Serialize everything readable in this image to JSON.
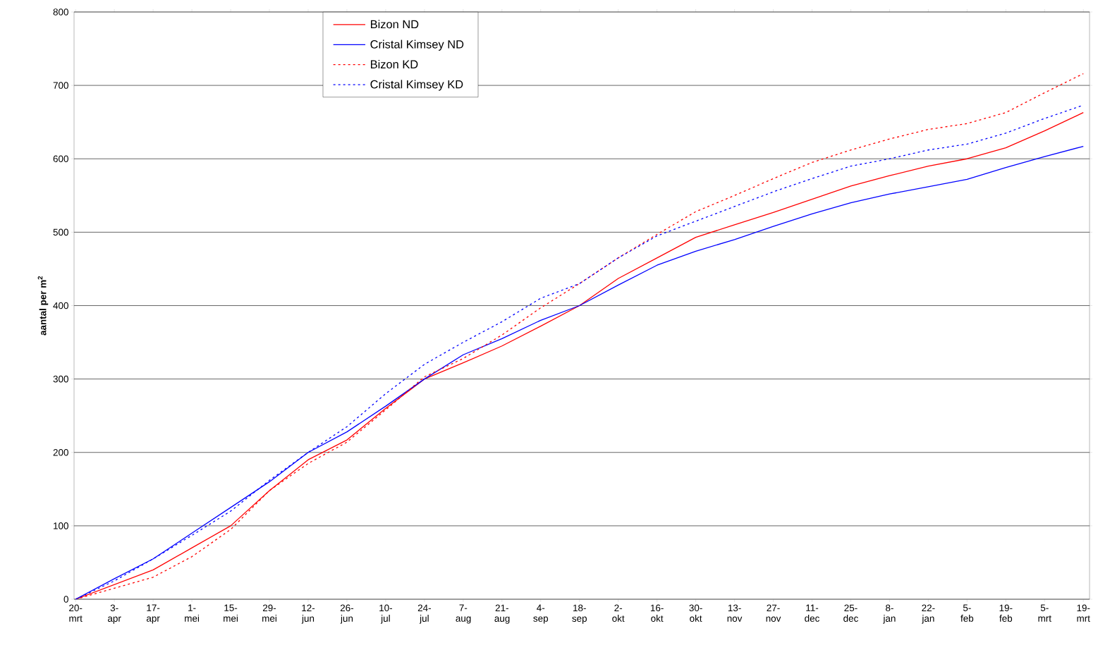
{
  "chart_data": {
    "type": "line",
    "ylabel": "aantal per m$^{2}$",
    "categories": [
      "20-mrt",
      "3-apr",
      "17-apr",
      "1-mei",
      "15-mei",
      "29-mei",
      "12-jun",
      "26-jun",
      "10-jul",
      "24-jul",
      "7-aug",
      "21-aug",
      "4-sep",
      "18-sep",
      "2-okt",
      "16-okt",
      "30-okt",
      "13-nov",
      "27-nov",
      "11-dec",
      "25-dec",
      "8-jan",
      "22-jan",
      "5-feb",
      "19-feb",
      "5-mrt",
      "19-mrt"
    ],
    "ylim": [
      0,
      800
    ],
    "yticks": [
      0,
      100,
      200,
      300,
      400,
      500,
      600,
      700,
      800
    ],
    "grid": "y",
    "legend": "top left",
    "marker": "none",
    "series": [
      {
        "name": "Bizon ND",
        "color": "#ff0000",
        "line_style": "solid",
        "values": [
          0,
          20,
          40,
          70,
          100,
          148,
          190,
          217,
          260,
          300,
          322,
          345,
          372,
          400,
          437,
          465,
          493,
          510,
          527,
          545,
          563,
          577,
          590,
          600,
          615,
          638,
          663
        ]
      },
      {
        "name": "Cristal Kimsey ND",
        "color": "#0000ff",
        "line_style": "solid",
        "values": [
          0,
          28,
          55,
          90,
          125,
          160,
          200,
          228,
          263,
          300,
          333,
          355,
          380,
          400,
          428,
          455,
          474,
          490,
          508,
          525,
          540,
          552,
          562,
          572,
          588,
          603,
          617
        ]
      },
      {
        "name": "Bizon KD",
        "color": "#ff0000",
        "line_style": "dotted",
        "values": [
          0,
          15,
          30,
          58,
          95,
          148,
          185,
          214,
          258,
          303,
          328,
          360,
          397,
          430,
          465,
          497,
          528,
          550,
          573,
          595,
          612,
          627,
          640,
          648,
          663,
          690,
          716
        ]
      },
      {
        "name": "Cristal Kimsey KD",
        "color": "#0000ff",
        "line_style": "dotted",
        "values": [
          0,
          25,
          55,
          87,
          120,
          162,
          200,
          235,
          280,
          320,
          350,
          378,
          410,
          430,
          465,
          495,
          515,
          535,
          555,
          573,
          590,
          600,
          612,
          620,
          635,
          655,
          673
        ]
      }
    ]
  }
}
